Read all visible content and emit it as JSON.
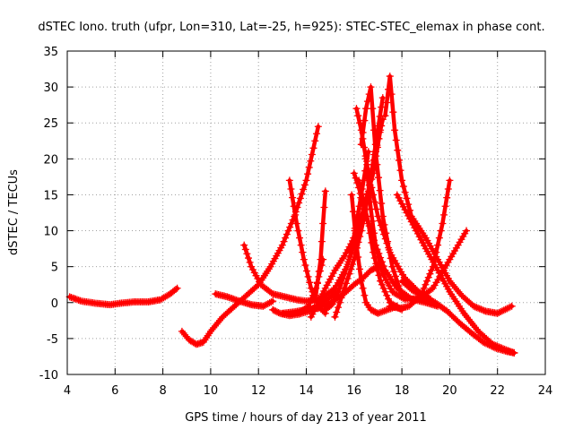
{
  "chart_data": {
    "type": "scatter",
    "title": "dSTEC Iono. truth (ufpr, Lon=310, Lat=-25, h=925): STEC-STEC_elemax in phase cont.",
    "xlabel": "GPS time / hours of day 213 of year 2011",
    "ylabel": "dSTEC  / TECUs",
    "xlim": [
      4,
      24
    ],
    "ylim": [
      -10,
      35
    ],
    "xticks": [
      4,
      6,
      8,
      10,
      12,
      14,
      16,
      18,
      20,
      22,
      24
    ],
    "yticks": [
      -10,
      -5,
      0,
      5,
      10,
      15,
      20,
      25,
      30,
      35
    ],
    "grid": true,
    "marker": "plus",
    "color": "#ff0000",
    "series": [
      {
        "x": [
          4.1,
          4.6,
          5.2,
          5.8,
          6.2,
          6.8,
          7.4,
          7.9,
          8.3,
          8.6
        ],
        "y": [
          0.8,
          0.2,
          -0.1,
          -0.3,
          -0.1,
          0.1,
          0.1,
          0.4,
          1.2,
          2.0
        ]
      },
      {
        "x": [
          8.8,
          9.1,
          9.4,
          9.7,
          10.0,
          10.5,
          11.0,
          11.5,
          12.0,
          12.5,
          13.0,
          13.5,
          14.0,
          14.3,
          14.5
        ],
        "y": [
          -4.0,
          -5.2,
          -5.8,
          -5.5,
          -4.0,
          -2.0,
          -0.5,
          1.0,
          2.5,
          5.0,
          8.0,
          12.0,
          17.0,
          21.5,
          24.5
        ]
      },
      {
        "x": [
          10.2,
          10.7,
          11.2,
          11.7,
          12.2,
          12.6
        ],
        "y": [
          1.2,
          0.8,
          0.2,
          -0.3,
          -0.5,
          0.2
        ]
      },
      {
        "x": [
          11.4,
          11.7,
          12.1,
          12.6,
          13.1,
          13.6,
          14.0,
          14.6,
          15.2,
          15.7,
          16.1,
          16.5,
          16.9,
          17.2
        ],
        "y": [
          8.0,
          5.0,
          2.5,
          1.2,
          0.8,
          0.4,
          0.2,
          0.5,
          2.0,
          5.0,
          9.0,
          14.0,
          21.0,
          25.5
        ]
      },
      {
        "x": [
          12.6,
          12.9,
          13.3,
          13.7,
          14.1,
          14.4,
          14.8,
          15.3
        ],
        "y": [
          -1.0,
          -1.5,
          -1.8,
          -1.6,
          -1.2,
          -0.5,
          0.3,
          1.5
        ]
      },
      {
        "x": [
          13.0,
          13.5,
          14.0,
          14.5,
          15.0,
          15.5,
          16.0,
          16.4,
          16.7,
          17.0
        ],
        "y": [
          -1.5,
          -1.3,
          -1.0,
          -0.8,
          0.0,
          1.0,
          2.5,
          3.5,
          4.5,
          5.0
        ]
      },
      {
        "x": [
          13.3,
          13.6,
          13.9,
          14.2,
          14.5,
          14.8
        ],
        "y": [
          17.0,
          11.0,
          6.0,
          2.0,
          -0.5,
          -1.5
        ]
      },
      {
        "x": [
          13.8,
          14.1,
          14.4,
          14.7
        ],
        "y": [
          -1.2,
          -0.5,
          2.0,
          6.0
        ]
      },
      {
        "x": [
          14.2,
          14.5,
          14.8,
          15.2,
          15.6,
          16.0,
          16.4,
          16.8,
          17.1
        ],
        "y": [
          -2.0,
          0.0,
          2.0,
          4.5,
          6.5,
          9.0,
          13.0,
          18.0,
          24.0
        ]
      },
      {
        "x": [
          14.4,
          14.6,
          14.7,
          14.8
        ],
        "y": [
          1.0,
          6.0,
          11.0,
          15.5
        ]
      },
      {
        "x": [
          14.8,
          15.1,
          15.4,
          15.8,
          16.1,
          16.4,
          16.6
        ],
        "y": [
          -1.0,
          -0.2,
          2.0,
          6.0,
          11.0,
          17.0,
          21.0
        ]
      },
      {
        "x": [
          15.2,
          15.6,
          16.0,
          16.3,
          16.6,
          16.9,
          17.2
        ],
        "y": [
          -2.0,
          2.0,
          6.0,
          10.0,
          15.0,
          22.0,
          28.5
        ]
      },
      {
        "x": [
          15.9,
          16.1,
          16.3,
          16.5,
          16.7,
          17.0,
          17.4,
          17.8
        ],
        "y": [
          15.0,
          8.0,
          3.0,
          0.0,
          -1.0,
          -1.5,
          -1.0,
          -0.5
        ]
      },
      {
        "x": [
          16.0,
          16.2,
          16.5,
          16.9,
          17.3,
          17.8,
          18.4,
          19.0,
          19.5
        ],
        "y": [
          18.0,
          16.0,
          12.0,
          8.0,
          4.5,
          2.0,
          0.5,
          0.0,
          -0.5
        ]
      },
      {
        "x": [
          16.1,
          16.3,
          16.6,
          17.0,
          17.5,
          18.1,
          18.7,
          19.2
        ],
        "y": [
          27.0,
          24.0,
          18.0,
          12.0,
          7.0,
          3.5,
          1.5,
          0.5
        ]
      },
      {
        "x": [
          16.2,
          16.4,
          16.6,
          16.8,
          17.1,
          17.5,
          18.0
        ],
        "y": [
          17.0,
          14.0,
          11.0,
          7.0,
          3.0,
          0.0,
          -1.0
        ]
      },
      {
        "x": [
          16.3,
          16.5,
          16.7,
          16.9,
          17.2,
          17.6,
          18.0
        ],
        "y": [
          22.0,
          27.0,
          30.0,
          21.0,
          12.0,
          5.0,
          1.0
        ]
      },
      {
        "x": [
          16.5,
          16.7,
          16.9,
          17.2,
          17.6,
          18.1,
          18.7,
          19.3,
          20.0,
          20.7
        ],
        "y": [
          20.0,
          13.0,
          8.0,
          4.0,
          1.5,
          0.5,
          0.5,
          2.0,
          6.0,
          10.0
        ]
      },
      {
        "x": [
          17.3,
          17.5,
          17.7,
          18.0,
          18.4,
          19.0,
          19.5,
          20.0,
          20.5,
          21.0,
          21.5,
          22.0,
          22.6
        ],
        "y": [
          26.0,
          31.5,
          24.0,
          17.0,
          12.0,
          9.0,
          6.0,
          3.0,
          1.0,
          -0.5,
          -1.2,
          -1.5,
          -0.5
        ]
      },
      {
        "x": [
          17.5,
          17.9,
          18.3,
          18.8,
          19.3,
          19.7,
          20.0
        ],
        "y": [
          -0.5,
          -0.8,
          -0.5,
          1.0,
          5.0,
          11.0,
          17.0
        ]
      },
      {
        "x": [
          17.8,
          18.2,
          18.6,
          19.0,
          19.5,
          20.0,
          20.6,
          21.2,
          21.8,
          22.3,
          22.7
        ],
        "y": [
          15.0,
          12.5,
          10.0,
          7.5,
          4.5,
          1.5,
          -1.5,
          -4.0,
          -5.8,
          -6.5,
          -7.0
        ]
      },
      {
        "x": [
          18.0,
          18.4,
          18.9,
          19.4,
          19.9,
          20.4,
          20.9,
          21.4,
          21.9,
          22.4,
          22.7
        ],
        "y": [
          3.0,
          1.8,
          0.8,
          0.0,
          -1.2,
          -2.8,
          -4.2,
          -5.5,
          -6.3,
          -6.8,
          -7.0
        ]
      }
    ]
  }
}
